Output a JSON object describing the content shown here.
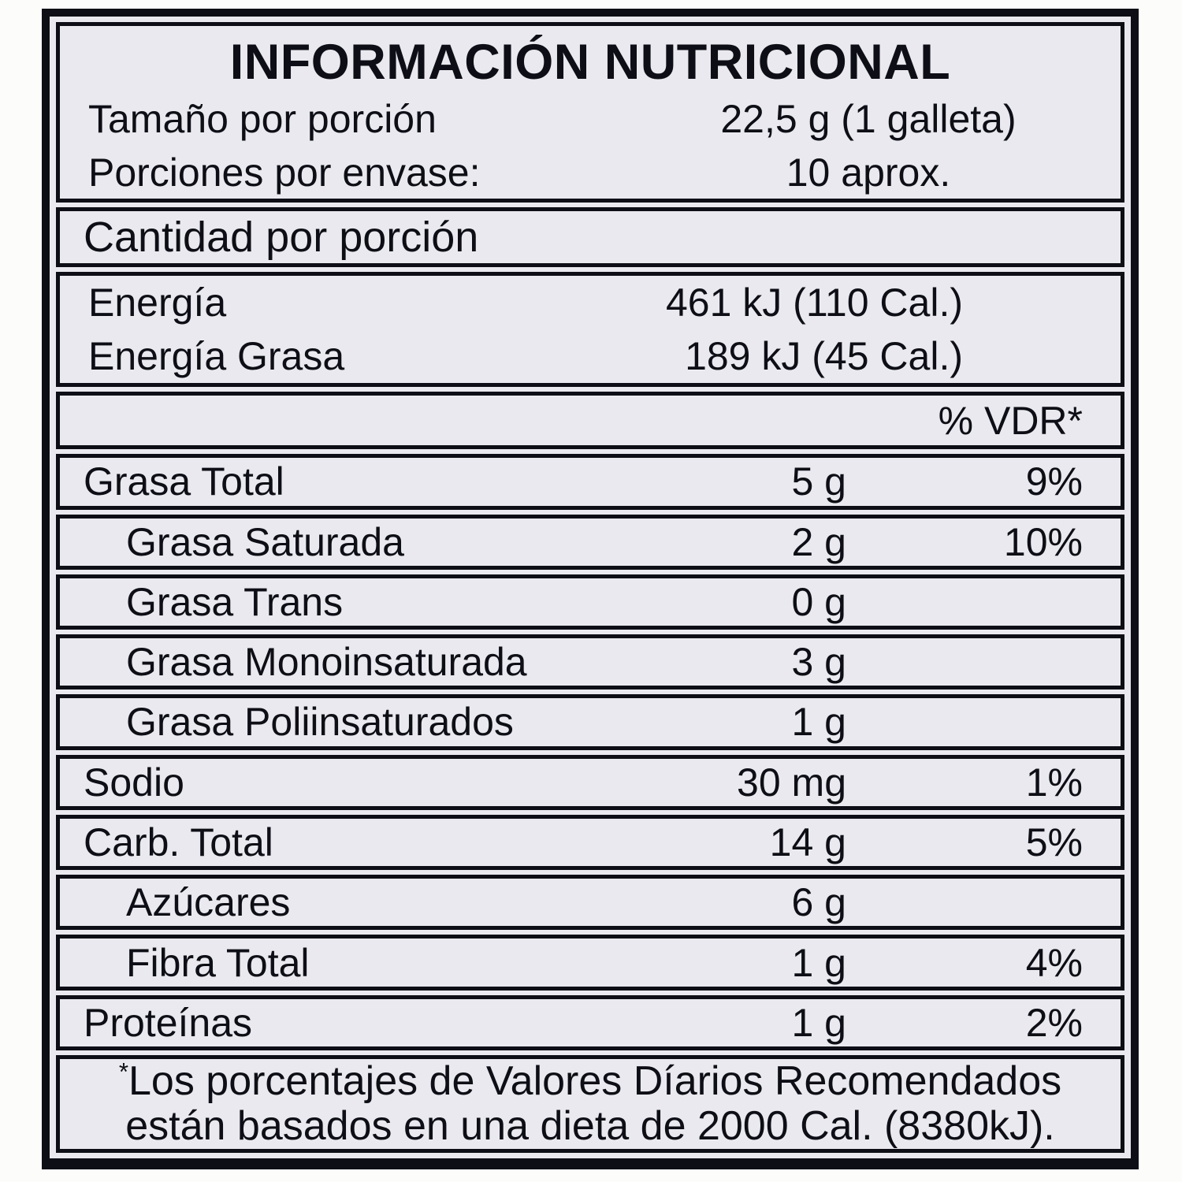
{
  "label": {
    "title": "INFORMACIÓN NUTRICIONAL",
    "serving_rows": [
      {
        "label": "Tamaño por porción",
        "value": "22,5 g (1 galleta)"
      },
      {
        "label": "Porciones por envase:",
        "value": "10 aprox."
      }
    ],
    "section_header": "Cantidad por porción",
    "energy_rows": [
      {
        "label": "Energía",
        "value": "461 kJ (110 Cal.)"
      },
      {
        "label": "Energía Grasa",
        "value": "189 kJ (45 Cal.)"
      }
    ],
    "vdr_header": "% VDR*",
    "nutrients": [
      {
        "label": "Grasa Total",
        "amount": "5 g",
        "vdr": "9%",
        "indent": false
      },
      {
        "label": "Grasa Saturada",
        "amount": "2 g",
        "vdr": "10%",
        "indent": true
      },
      {
        "label": "Grasa Trans",
        "amount": "0 g",
        "vdr": "",
        "indent": true
      },
      {
        "label": "Grasa Monoinsaturada",
        "amount": "3 g",
        "vdr": "",
        "indent": true
      },
      {
        "label": "Grasa Poliinsaturados",
        "amount": "1 g",
        "vdr": "",
        "indent": true
      },
      {
        "label": "Sodio",
        "amount": "30 mg",
        "vdr": "1%",
        "indent": false
      },
      {
        "label": "Carb. Total",
        "amount": "14 g",
        "vdr": "5%",
        "indent": false
      },
      {
        "label": "Azúcares",
        "amount": "6 g",
        "vdr": "",
        "indent": true
      },
      {
        "label": "Fibra Total",
        "amount": "1 g",
        "vdr": "4%",
        "indent": true
      },
      {
        "label": "Proteínas",
        "amount": "1 g",
        "vdr": "2%",
        "indent": false
      }
    ],
    "footnote": {
      "asterisk": "*",
      "line1": "Los porcentajes de Valores Díarios Recomendados",
      "line2": "están basados en una dieta de 2000 Cal. (8380kJ)."
    },
    "colors": {
      "paper": "#e9e9ef",
      "ink": "#0e0e16",
      "page": "#fcfcfa"
    }
  }
}
